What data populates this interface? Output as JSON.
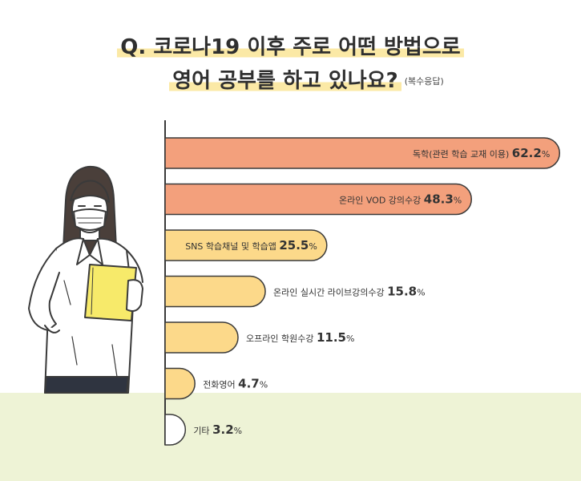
{
  "title": {
    "line1": "Q. 코로나19 이후 주로 어떤 방법으로",
    "line2": "영어 공부를 하고 있나요?",
    "note": "(복수응답)"
  },
  "colors": {
    "orange": "#f3a07c",
    "yellow": "#fcd98a",
    "stroke": "#3a3a3a",
    "floor": "#eef3d6",
    "highlight": "#fbe9a6",
    "folder": "#f7ea6a"
  },
  "chart_data": {
    "type": "bar",
    "orientation": "horizontal",
    "unit": "%",
    "xlim": [
      0,
      70
    ],
    "categories": [
      "독학(관련 학습 교재 이용)",
      "온라인 VOD 강의수강",
      "SNS 학습채널 및 학습앱",
      "온라인 실시간 라이브강의수강",
      "오프라인 학원수강",
      "전화영어",
      "기타"
    ],
    "values": [
      62.2,
      48.3,
      25.5,
      15.8,
      11.5,
      4.7,
      3.2
    ],
    "value_labels": [
      "62.2",
      "48.3",
      "25.5",
      "15.8",
      "11.5",
      "4.7",
      "3.2"
    ],
    "bar_colors": [
      "#f3a07c",
      "#f3a07c",
      "#fcd98a",
      "#fcd98a",
      "#fcd98a",
      "#fcd98a",
      "#ffffff"
    ]
  },
  "illustration": {
    "icon": "woman-with-mask-holding-folder-icon"
  }
}
